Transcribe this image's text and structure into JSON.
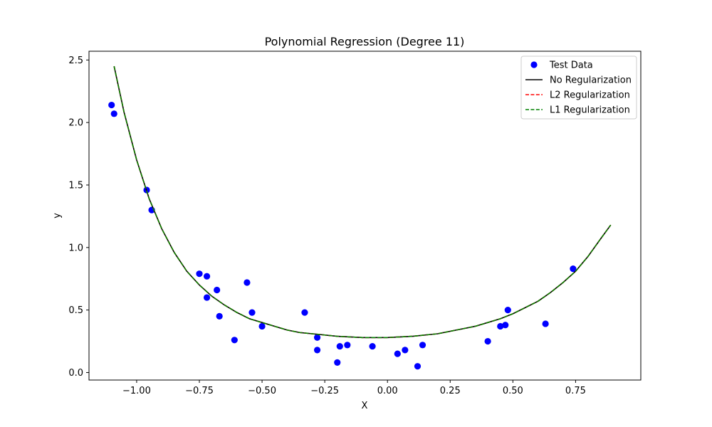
{
  "chart_data": {
    "type": "scatter",
    "title": "Polynomial Regression (Degree 11)",
    "xlabel": "X",
    "ylabel": "y",
    "xlim": [
      -1.19,
      1.01
    ],
    "ylim": [
      -0.06,
      2.57
    ],
    "xticks": [
      -1.0,
      -0.75,
      -0.5,
      -0.25,
      0.0,
      0.25,
      0.5,
      0.75
    ],
    "xtick_labels": [
      "−1.00",
      "−0.75",
      "−0.50",
      "−0.25",
      "0.00",
      "0.25",
      "0.50",
      "0.75"
    ],
    "yticks": [
      0.0,
      0.5,
      1.0,
      1.5,
      2.0,
      2.5
    ],
    "ytick_labels": [
      "0.0",
      "0.5",
      "1.0",
      "1.5",
      "2.0",
      "2.5"
    ],
    "grid": false,
    "legend_position": "top-right",
    "series": [
      {
        "name": "Test Data",
        "kind": "scatter",
        "color": "#0000ff",
        "points": [
          [
            -1.1,
            2.14
          ],
          [
            -1.09,
            2.07
          ],
          [
            -0.96,
            1.46
          ],
          [
            -0.94,
            1.3
          ],
          [
            -0.75,
            0.79
          ],
          [
            -0.72,
            0.77
          ],
          [
            -0.72,
            0.6
          ],
          [
            -0.68,
            0.66
          ],
          [
            -0.67,
            0.45
          ],
          [
            -0.61,
            0.26
          ],
          [
            -0.56,
            0.72
          ],
          [
            -0.54,
            0.48
          ],
          [
            -0.5,
            0.37
          ],
          [
            -0.33,
            0.48
          ],
          [
            -0.28,
            0.28
          ],
          [
            -0.28,
            0.18
          ],
          [
            -0.2,
            0.08
          ],
          [
            -0.19,
            0.21
          ],
          [
            -0.16,
            0.22
          ],
          [
            -0.06,
            0.21
          ],
          [
            0.04,
            0.15
          ],
          [
            0.07,
            0.18
          ],
          [
            0.12,
            0.05
          ],
          [
            0.14,
            0.22
          ],
          [
            0.4,
            0.25
          ],
          [
            0.45,
            0.37
          ],
          [
            0.47,
            0.38
          ],
          [
            0.48,
            0.5
          ],
          [
            0.63,
            0.39
          ],
          [
            0.74,
            0.83
          ]
        ]
      },
      {
        "name": "No Regularization",
        "kind": "line",
        "color": "#000000",
        "dash": "solid",
        "x": [
          -1.09,
          -1.05,
          -1.0,
          -0.95,
          -0.9,
          -0.85,
          -0.8,
          -0.75,
          -0.7,
          -0.65,
          -0.6,
          -0.55,
          -0.5,
          -0.45,
          -0.4,
          -0.35,
          -0.3,
          -0.25,
          -0.2,
          -0.15,
          -0.1,
          -0.05,
          0.0,
          0.05,
          0.1,
          0.15,
          0.2,
          0.25,
          0.3,
          0.35,
          0.4,
          0.45,
          0.5,
          0.55,
          0.6,
          0.65,
          0.7,
          0.75,
          0.8,
          0.85,
          0.89
        ],
        "y": [
          2.45,
          2.08,
          1.7,
          1.39,
          1.15,
          0.96,
          0.81,
          0.7,
          0.61,
          0.54,
          0.48,
          0.43,
          0.4,
          0.37,
          0.34,
          0.32,
          0.31,
          0.3,
          0.29,
          0.285,
          0.28,
          0.28,
          0.28,
          0.285,
          0.29,
          0.3,
          0.31,
          0.33,
          0.35,
          0.37,
          0.4,
          0.43,
          0.47,
          0.52,
          0.57,
          0.64,
          0.72,
          0.81,
          0.93,
          1.07,
          1.18
        ]
      },
      {
        "name": "L2 Regularization",
        "kind": "line",
        "color": "#ff0000",
        "dash": "dashed",
        "x": [
          -1.09,
          -1.05,
          -1.0,
          -0.95,
          -0.9,
          -0.85,
          -0.8,
          -0.75,
          -0.7,
          -0.65,
          -0.6,
          -0.55,
          -0.5,
          -0.45,
          -0.4,
          -0.35,
          -0.3,
          -0.25,
          -0.2,
          -0.15,
          -0.1,
          -0.05,
          0.0,
          0.05,
          0.1,
          0.15,
          0.2,
          0.25,
          0.3,
          0.35,
          0.4,
          0.45,
          0.5,
          0.55,
          0.6,
          0.65,
          0.7,
          0.75,
          0.8,
          0.85,
          0.89
        ],
        "y": [
          2.45,
          2.08,
          1.7,
          1.39,
          1.15,
          0.96,
          0.81,
          0.7,
          0.61,
          0.54,
          0.48,
          0.43,
          0.4,
          0.37,
          0.34,
          0.32,
          0.31,
          0.3,
          0.29,
          0.285,
          0.28,
          0.28,
          0.28,
          0.285,
          0.29,
          0.3,
          0.31,
          0.33,
          0.35,
          0.37,
          0.4,
          0.43,
          0.47,
          0.52,
          0.57,
          0.64,
          0.72,
          0.81,
          0.93,
          1.07,
          1.18
        ]
      },
      {
        "name": "L1 Regularization",
        "kind": "line",
        "color": "#008000",
        "dash": "dashed",
        "x": [
          -1.09,
          -1.05,
          -1.0,
          -0.95,
          -0.9,
          -0.85,
          -0.8,
          -0.75,
          -0.7,
          -0.65,
          -0.6,
          -0.55,
          -0.5,
          -0.45,
          -0.4,
          -0.35,
          -0.3,
          -0.25,
          -0.2,
          -0.15,
          -0.1,
          -0.05,
          0.0,
          0.05,
          0.1,
          0.15,
          0.2,
          0.25,
          0.3,
          0.35,
          0.4,
          0.45,
          0.5,
          0.55,
          0.6,
          0.65,
          0.7,
          0.75,
          0.8,
          0.85,
          0.89
        ],
        "y": [
          2.45,
          2.08,
          1.7,
          1.39,
          1.15,
          0.96,
          0.81,
          0.7,
          0.61,
          0.54,
          0.48,
          0.43,
          0.4,
          0.37,
          0.34,
          0.32,
          0.31,
          0.3,
          0.29,
          0.285,
          0.28,
          0.28,
          0.28,
          0.285,
          0.29,
          0.3,
          0.31,
          0.33,
          0.35,
          0.37,
          0.4,
          0.43,
          0.47,
          0.52,
          0.57,
          0.64,
          0.72,
          0.81,
          0.93,
          1.07,
          1.18
        ]
      }
    ]
  }
}
